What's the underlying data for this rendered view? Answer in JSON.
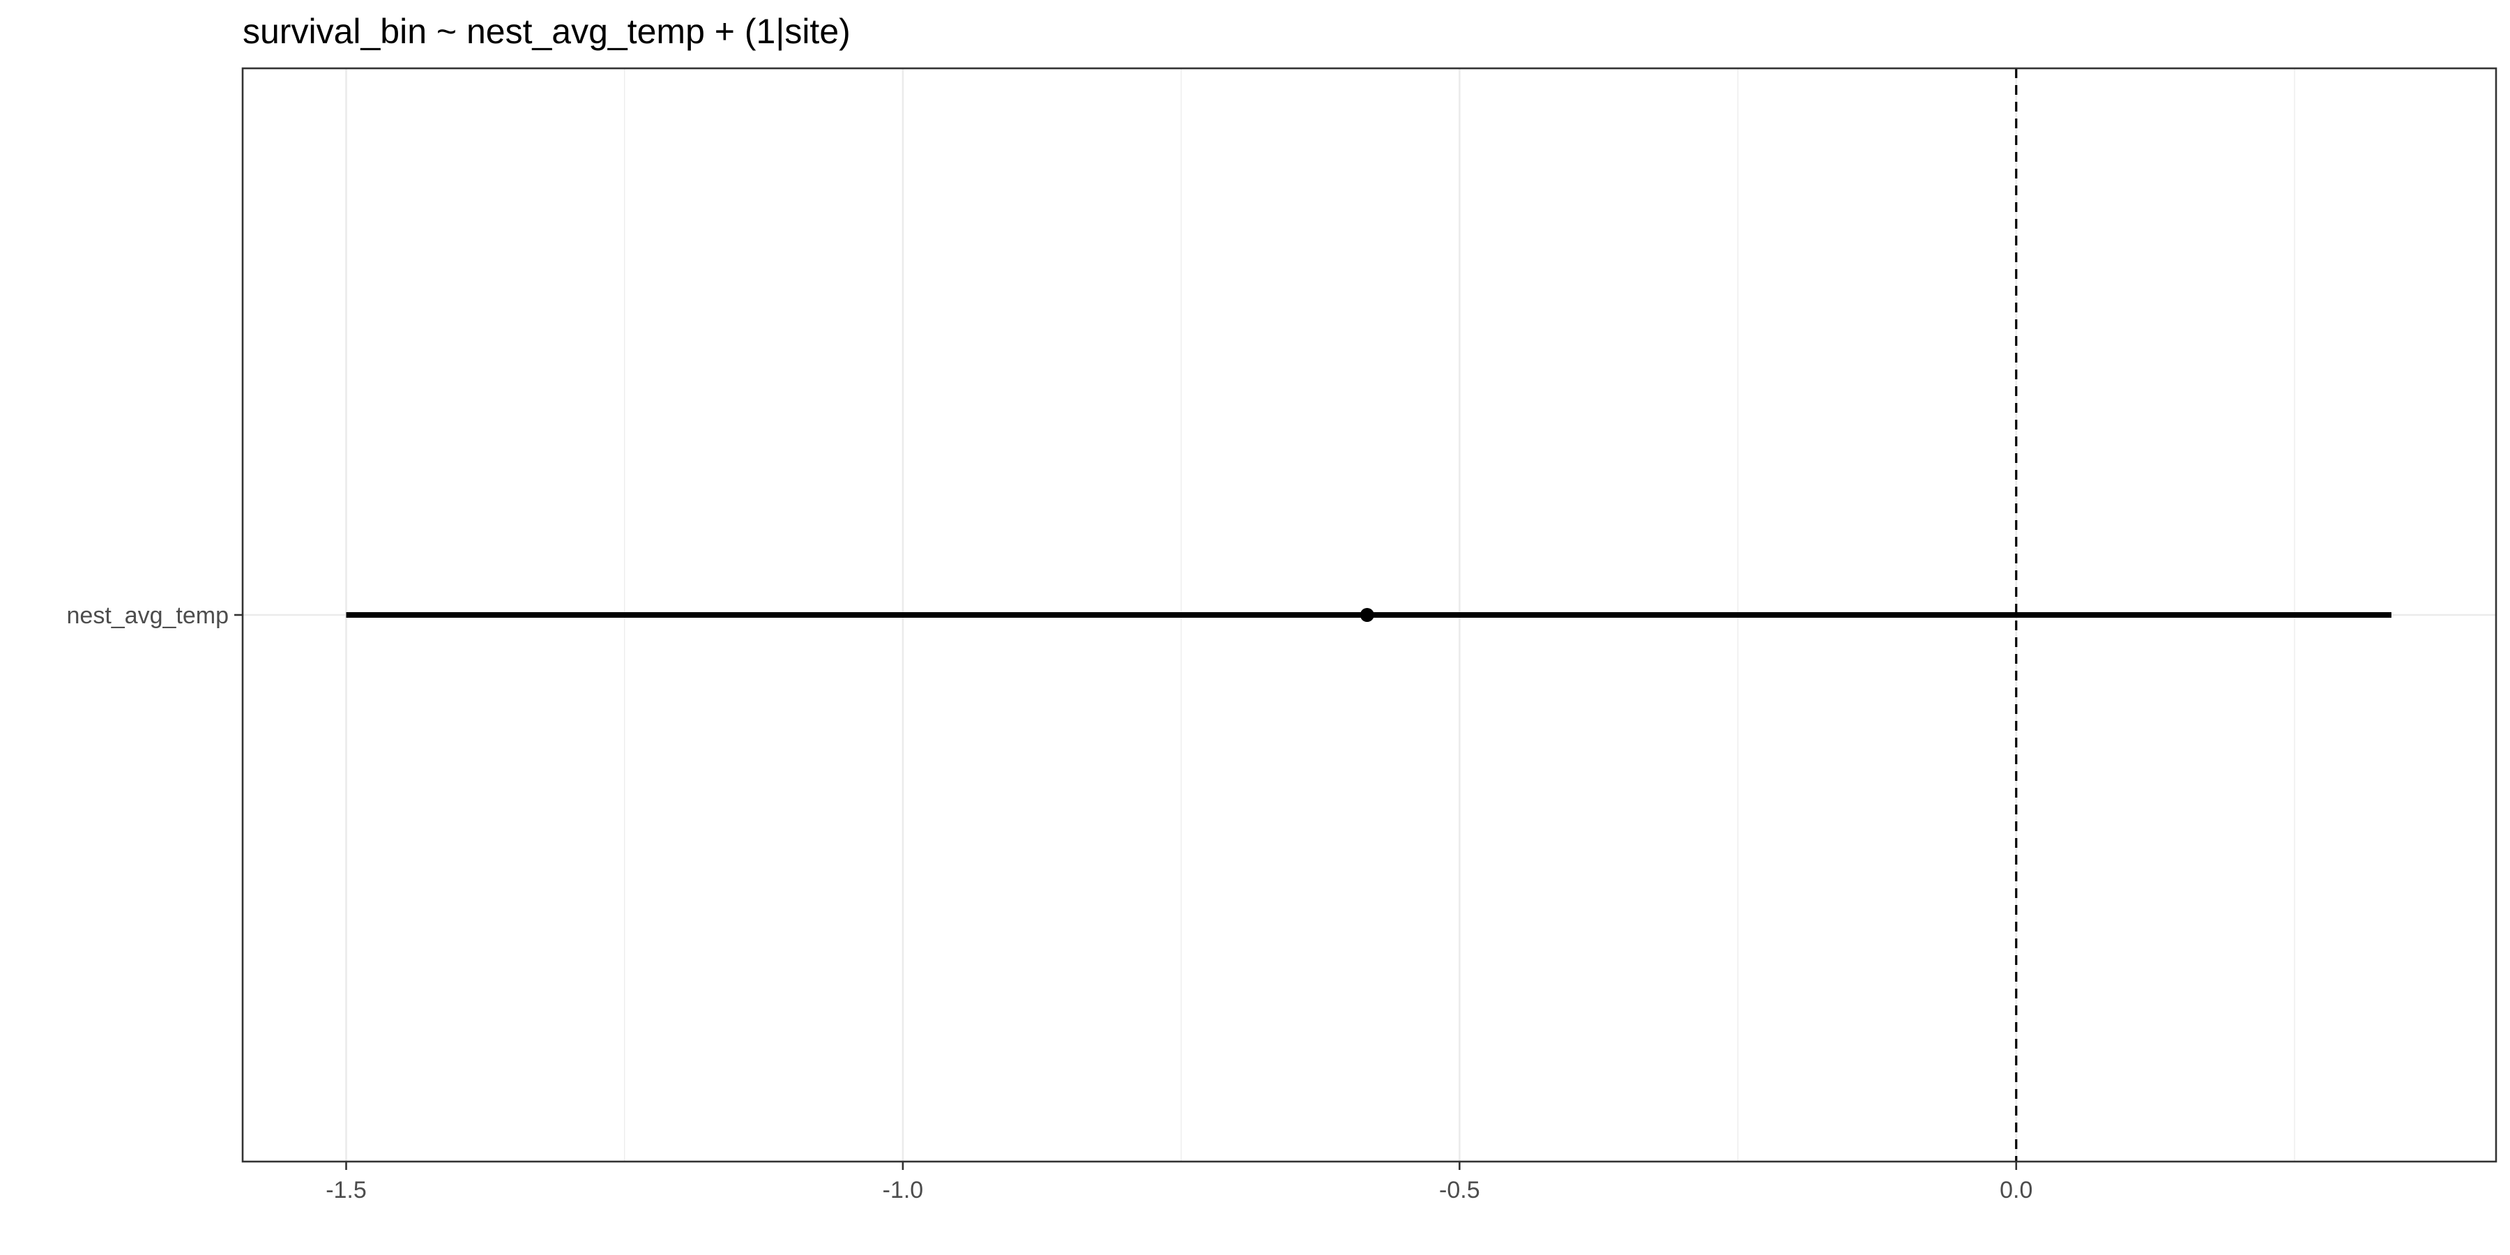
{
  "chart_data": {
    "type": "scatter",
    "title": "survival_bin ~ nest_avg_temp + (1|site)",
    "xlabel": "",
    "ylabel": "",
    "xlim": [
      -1.593,
      0.431
    ],
    "x_ticks": [
      -1.5,
      -1.0,
      -0.5,
      0.0
    ],
    "x_tick_labels": [
      "-1.5",
      "-1.0",
      "-0.5",
      "0.0"
    ],
    "x_minor_ticks": [
      -1.25,
      -0.75,
      -0.25,
      0.25
    ],
    "categories": [
      "nest_avg_temp"
    ],
    "series": [
      {
        "points": [
          {
            "term": "nest_avg_temp",
            "estimate": -0.583,
            "conf_low": -1.5,
            "conf_high": 0.337
          }
        ]
      }
    ],
    "reference_line_x": 0.0,
    "grid": true,
    "legend": "none",
    "colors": {
      "point": "#000000",
      "interval": "#000000",
      "reference_line": "#000000",
      "grid": "#ebebeb",
      "panel_border": "#333333",
      "tick_label": "#4d4d4d"
    }
  }
}
